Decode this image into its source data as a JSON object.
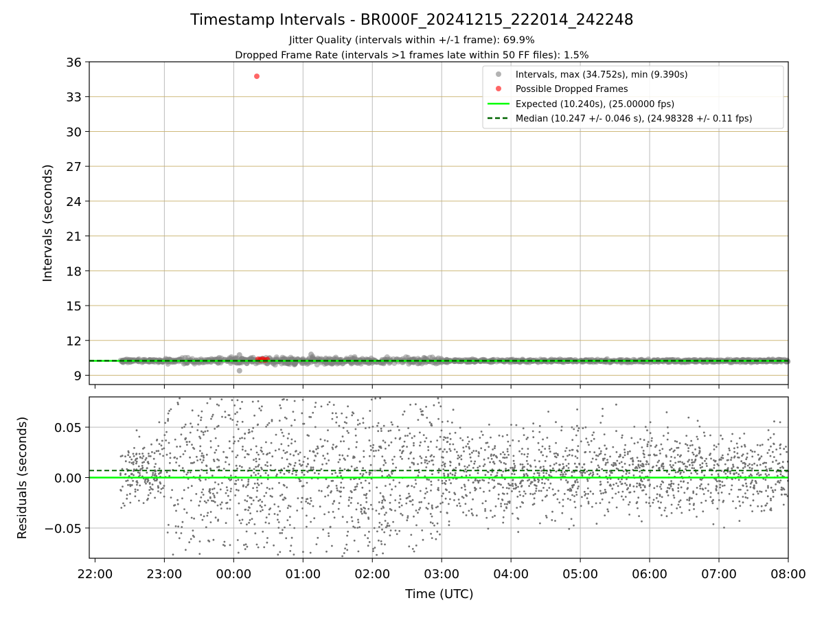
{
  "chart_data": [
    {
      "type": "scatter",
      "title": "Timestamp Intervals - BR000F_20241215_222014_242248",
      "subtitle": [
        "Jitter Quality (intervals within +/-1 frame): 69.9%",
        "Dropped Frame Rate (intervals >1 frames late within 50 FF files): 1.5%"
      ],
      "xlabel": "",
      "ylabel": "Intervals (seconds)",
      "xlim": [
        "2024-12-15T21:55",
        "2024-12-16T08:00"
      ],
      "ylim": [
        8.2,
        36
      ],
      "yticks": [
        9,
        12,
        15,
        18,
        21,
        24,
        27,
        30,
        33,
        36
      ],
      "grid": true,
      "legend_position": "top-right",
      "legend": [
        "Intervals, max (34.752s), min (9.390s)",
        "Possible Dropped Frames",
        "Expected (10.240s), (25.00000 fps)",
        "Median (10.247 +/- 0.046 s), (24.98328 +/- 0.11 fps)"
      ],
      "expected_interval": 10.24,
      "median_interval": 10.247,
      "max_interval": 34.752,
      "min_interval": 9.39,
      "series": [
        {
          "name": "Intervals, max (34.752s), min (9.390s)",
          "color": "#808080",
          "x_range": [
            "2024-12-15T22:22",
            "2024-12-16T08:00"
          ],
          "center": 10.24,
          "outliers": [
            {
              "x": "2024-12-16T00:05",
              "y": 9.39
            },
            {
              "x": "2024-12-16T00:05",
              "y": 10.75
            },
            {
              "x": "2024-12-16T01:07",
              "y": 10.8
            }
          ]
        },
        {
          "name": "Possible Dropped Frames",
          "color": "#ff0000",
          "points": [
            {
              "x": "2024-12-16T00:20",
              "y": 34.752
            },
            {
              "x": "2024-12-16T00:21",
              "y": 10.38
            },
            {
              "x": "2024-12-16T00:23",
              "y": 10.32
            },
            {
              "x": "2024-12-16T00:25",
              "y": 10.4
            },
            {
              "x": "2024-12-16T00:27",
              "y": 10.3
            },
            {
              "x": "2024-12-16T00:29",
              "y": 10.36
            }
          ]
        },
        {
          "name": "Expected (10.240s), (25.00000 fps)",
          "color": "#00ff00",
          "y": 10.24,
          "style": "solid"
        },
        {
          "name": "Median (10.247 +/- 0.046 s), (24.98328 +/- 0.11 fps)",
          "color": "#006400",
          "y": 10.247,
          "style": "dashed"
        }
      ]
    },
    {
      "type": "scatter",
      "xlabel": "Time (UTC)",
      "ylabel": "Residuals (seconds)",
      "xlim": [
        "2024-12-15T21:55",
        "2024-12-16T08:00"
      ],
      "ylim": [
        -0.08,
        0.08
      ],
      "yticks": [
        -0.05,
        0.0,
        0.05
      ],
      "ytick_labels": [
        "−0.05",
        "0.00",
        "0.05"
      ],
      "xticks": [
        "22:00",
        "23:00",
        "00:00",
        "01:00",
        "02:00",
        "03:00",
        "04:00",
        "05:00",
        "06:00",
        "07:00",
        "08:00"
      ],
      "grid": true,
      "series": [
        {
          "name": "",
          "color": "#707070",
          "x_range": [
            "2024-12-15T22:22",
            "2024-12-16T08:00"
          ],
          "spread_by_hour": [
            {
              "hour": "22:22-23:00",
              "min": -0.03,
              "max": 0.05
            },
            {
              "hour": "23:00-01:00",
              "min": -0.08,
              "max": 0.08
            },
            {
              "hour": "01:00-03:00",
              "min": -0.08,
              "max": 0.08
            },
            {
              "hour": "03:00-08:00",
              "min": -0.07,
              "max": 0.075
            }
          ]
        },
        {
          "name": "",
          "color": "#00ff00",
          "y": 0.0,
          "style": "solid"
        },
        {
          "name": "",
          "color": "#006400",
          "y": 0.007,
          "style": "dashed"
        }
      ]
    }
  ]
}
